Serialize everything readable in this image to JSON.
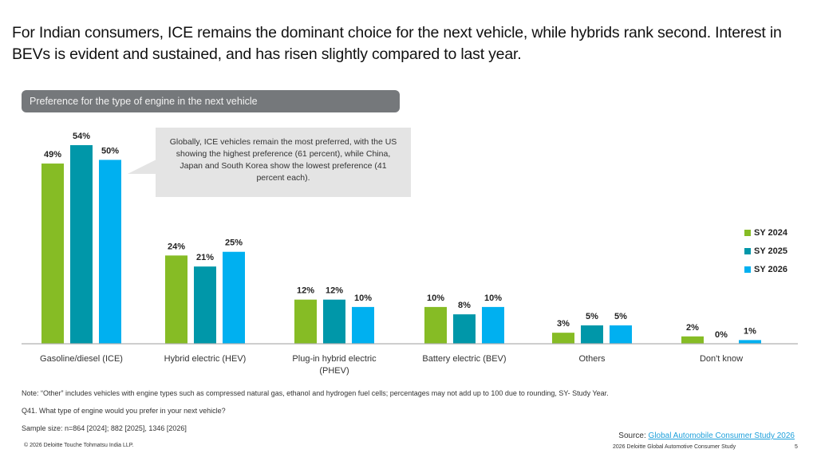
{
  "headline": "For Indian consumers, ICE remains the dominant choice for the next vehicle, while hybrids rank second. Interest in BEVs is evident and sustained, and has risen slightly compared to last year.",
  "section_title": "Preference for the type of engine in the next vehicle",
  "callout": "Globally, ICE vehicles remain the most preferred, with the US showing the highest preference (61 percent), while China, Japan and South Korea show the lowest preference (41 percent each).",
  "chart_data": {
    "type": "bar",
    "title": "Preference for the type of engine in the next vehicle",
    "xlabel": "",
    "ylabel": "",
    "ylim": [
      0,
      55
    ],
    "grid": false,
    "legend_position": "right",
    "categories": [
      [
        "Gasoline/diesel (ICE)"
      ],
      [
        "Hybrid electric (HEV)"
      ],
      [
        "Plug-in hybrid electric",
        "(PHEV)"
      ],
      [
        "Battery electric (BEV)"
      ],
      [
        "Others"
      ],
      [
        "Don't know"
      ]
    ],
    "series": [
      {
        "name": "SY 2024",
        "color": "#86bc25",
        "values": [
          49,
          24,
          12,
          10,
          3,
          2
        ]
      },
      {
        "name": "SY 2025",
        "color": "#0097a9",
        "values": [
          54,
          21,
          12,
          8,
          5,
          0
        ]
      },
      {
        "name": "SY 2026",
        "color": "#00b0f0",
        "values": [
          50,
          25,
          10,
          10,
          5,
          1
        ]
      }
    ],
    "value_suffix": "%"
  },
  "legend": [
    {
      "label": "SY 2024",
      "color": "#86bc25"
    },
    {
      "label": "SY 2025",
      "color": "#0097a9"
    },
    {
      "label": "SY 2026",
      "color": "#00b0f0"
    }
  ],
  "notes": {
    "note": "Note: “Other” includes vehicles with engine types such as compressed natural gas, ethanol and hydrogen fuel cells; percentages may not add up to 100 due to rounding, SY- Study Year.",
    "question": "Q41. What type of engine would you prefer in your next vehicle?",
    "sample": "Sample size: n=864 [2024]; 882 [2025], 1346 [2026]"
  },
  "footer": {
    "copyright": "© 2026 Deloitte Touche Tohmatsu India LLP.",
    "source_label": "Source: ",
    "source_link": "Global Automobile Consumer Study 2026",
    "study": "2026 Deloitte Global Automotive Consumer Study",
    "page": "5"
  }
}
